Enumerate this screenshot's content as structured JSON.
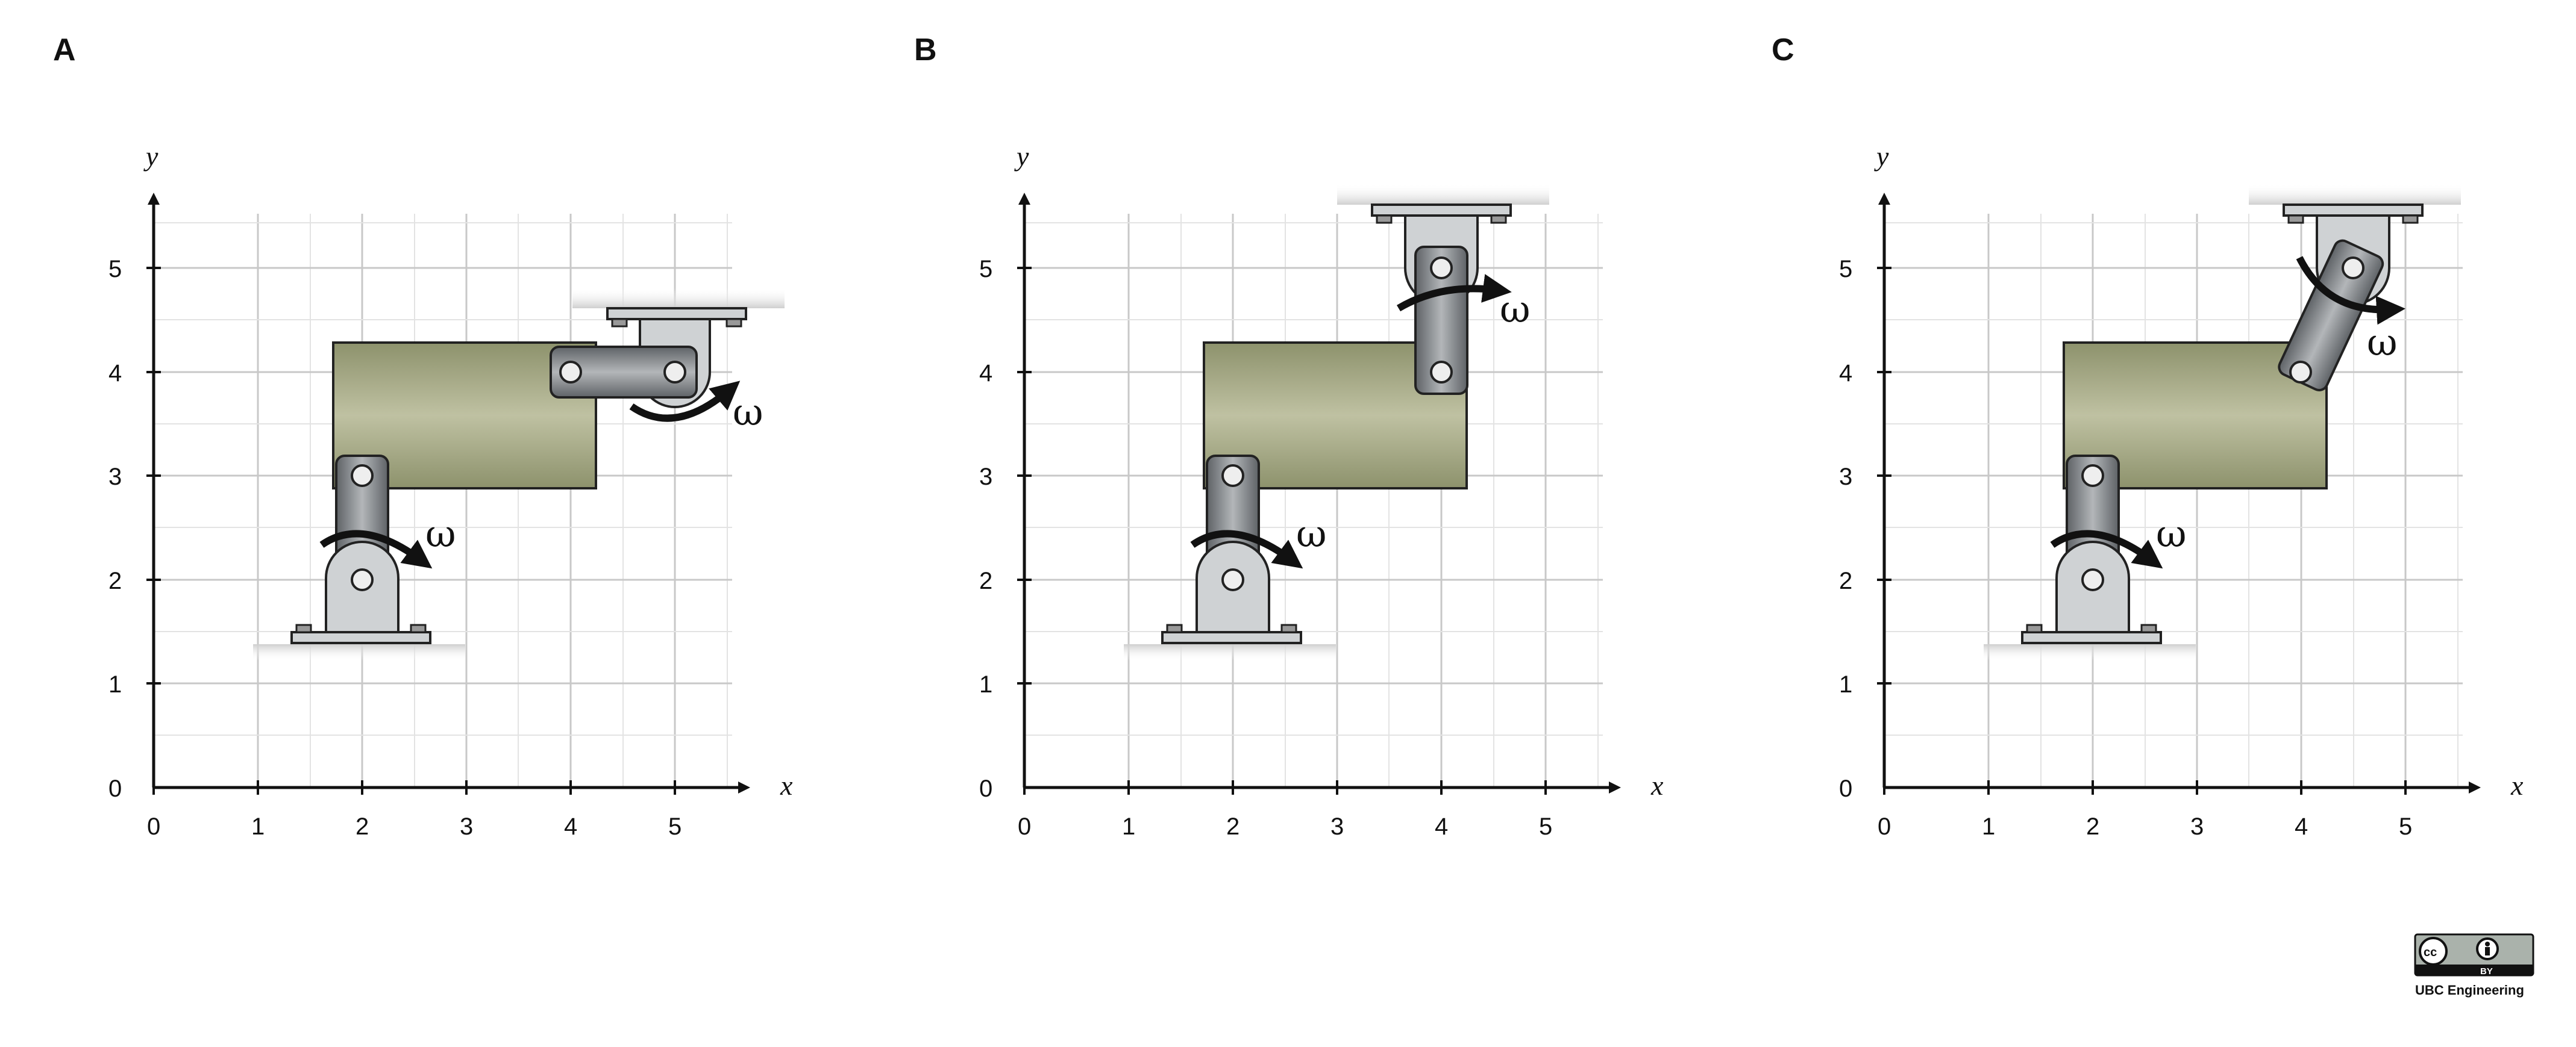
{
  "figure": {
    "panels": [
      {
        "id": "A",
        "label": "A"
      },
      {
        "id": "B",
        "label": "B"
      },
      {
        "id": "C",
        "label": "C"
      }
    ],
    "axes": {
      "x_label": "x",
      "y_label": "y",
      "x_ticks": [
        "0",
        "1",
        "2",
        "3",
        "4",
        "5"
      ],
      "y_ticks": [
        "0",
        "1",
        "2",
        "3",
        "4",
        "5"
      ]
    },
    "rotation_symbol": "ω",
    "colors": {
      "block": "#a7ab8a",
      "link": "#888c90",
      "bracket": "#cfd2d4",
      "ground": "#dcdcdc"
    }
  },
  "credit": {
    "license_badge_cc": "cc",
    "license_badge_by": "BY",
    "organization": "UBC Engineering"
  }
}
